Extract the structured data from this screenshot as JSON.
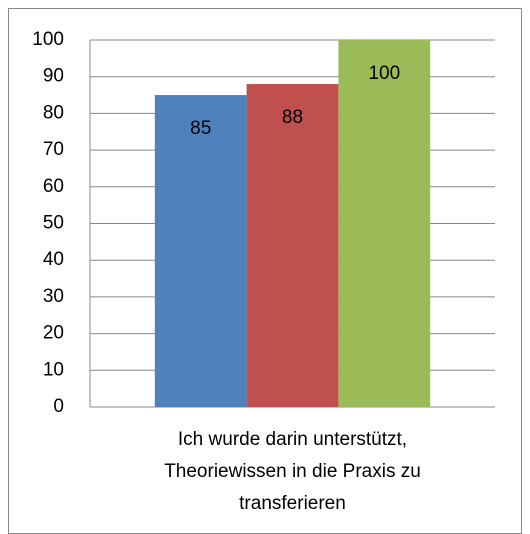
{
  "chart_data": {
    "type": "bar",
    "categories": [
      "Ich wurde darin unterstützt, Theoriewissen in die Praxis zu transferieren"
    ],
    "series": [
      {
        "color": "#4f81bd",
        "values": [
          85
        ]
      },
      {
        "color": "#c0504d",
        "values": [
          88
        ]
      },
      {
        "color": "#9bbb59",
        "values": [
          100
        ]
      }
    ],
    "ylim": [
      0,
      100
    ],
    "yticks": [
      0,
      10,
      20,
      30,
      40,
      50,
      60,
      70,
      80,
      90,
      100
    ],
    "grid": true
  }
}
